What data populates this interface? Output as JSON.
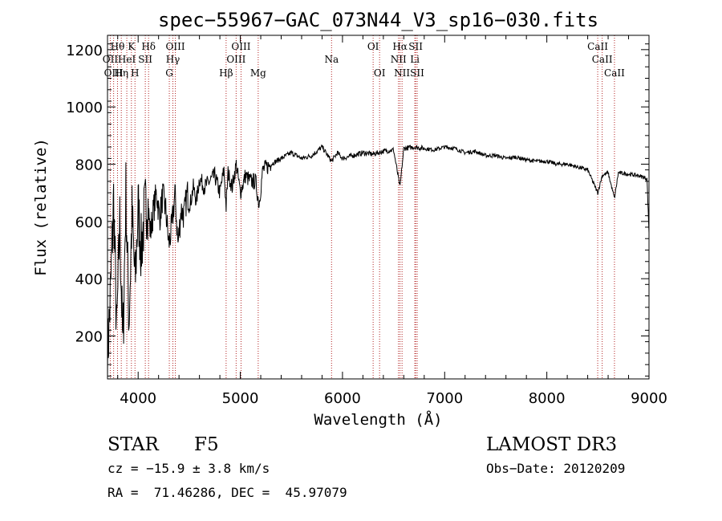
{
  "chart_data": {
    "type": "line",
    "title": "spec−55967−GAC_073N44_V3_sp16−030.fits",
    "xlabel": "Wavelength (Å)",
    "ylabel": "Flux (relative)",
    "xlim": [
      3700,
      9000
    ],
    "ylim": [
      50,
      1250
    ],
    "x_ticks": [
      4000,
      5000,
      6000,
      7000,
      8000,
      9000
    ],
    "x_tick_labels": [
      "4000",
      "5000",
      "6000",
      "7000",
      "8000",
      "9000"
    ],
    "y_ticks": [
      200,
      400,
      600,
      800,
      1000,
      1200
    ],
    "y_tick_labels": [
      "200",
      "400",
      "600",
      "800",
      "1000",
      "1200"
    ],
    "series": [
      {
        "name": "flux",
        "x": [
          3700,
          3730,
          3760,
          3790,
          3820,
          3850,
          3880,
          3910,
          3940,
          3970,
          4000,
          4030,
          4060,
          4090,
          4120,
          4150,
          4180,
          4210,
          4240,
          4270,
          4300,
          4330,
          4360,
          4390,
          4420,
          4450,
          4480,
          4510,
          4540,
          4570,
          4600,
          4650,
          4700,
          4750,
          4800,
          4840,
          4861,
          4880,
          4920,
          4960,
          5000,
          5050,
          5100,
          5150,
          5183,
          5220,
          5300,
          5400,
          5500,
          5600,
          5700,
          5800,
          5893,
          5950,
          6000,
          6100,
          6200,
          6300,
          6400,
          6500,
          6563,
          6600,
          6700,
          6800,
          6900,
          7000,
          7100,
          7200,
          7300,
          7400,
          7500,
          7600,
          7700,
          7800,
          7900,
          8000,
          8100,
          8200,
          8300,
          8400,
          8498,
          8542,
          8600,
          8662,
          8700,
          8800,
          8900,
          8980,
          9000
        ],
        "y": [
          120,
          350,
          680,
          200,
          600,
          150,
          700,
          250,
          620,
          380,
          650,
          500,
          620,
          680,
          560,
          640,
          700,
          610,
          690,
          640,
          520,
          580,
          700,
          520,
          640,
          620,
          700,
          660,
          720,
          670,
          750,
          720,
          740,
          760,
          700,
          780,
          650,
          770,
          720,
          800,
          700,
          760,
          740,
          740,
          660,
          780,
          800,
          820,
          840,
          820,
          830,
          860,
          810,
          840,
          820,
          830,
          840,
          835,
          845,
          850,
          720,
          855,
          860,
          855,
          850,
          860,
          855,
          840,
          845,
          830,
          830,
          820,
          825,
          815,
          810,
          810,
          800,
          800,
          790,
          780,
          700,
          760,
          770,
          680,
          770,
          765,
          760,
          750,
          560
        ],
        "color": "#000000"
      }
    ],
    "spectral_lines": [
      {
        "label": "Hθ",
        "wavelength": 3798,
        "row": 1
      },
      {
        "label": "K",
        "wavelength": 3934,
        "row": 1
      },
      {
        "label": "Hδ",
        "wavelength": 4102,
        "row": 1
      },
      {
        "label": "OIII",
        "wavelength": 4364,
        "row": 1
      },
      {
        "label": "OIII",
        "wavelength": 5007,
        "row": 1
      },
      {
        "label": "OI",
        "wavelength": 6300,
        "row": 1
      },
      {
        "label": "Hα",
        "wavelength": 6563,
        "row": 1
      },
      {
        "label": "SII",
        "wavelength": 6716,
        "row": 1
      },
      {
        "label": "CaII",
        "wavelength": 8498,
        "row": 1
      },
      {
        "label": "OII",
        "wavelength": 3727,
        "row": 2
      },
      {
        "label": "HeI",
        "wavelength": 3889,
        "row": 2
      },
      {
        "label": "SII",
        "wavelength": 4070,
        "row": 2
      },
      {
        "label": "Hγ",
        "wavelength": 4340,
        "row": 2
      },
      {
        "label": "OIII",
        "wavelength": 4959,
        "row": 2
      },
      {
        "label": "Na",
        "wavelength": 5893,
        "row": 2
      },
      {
        "label": "NII",
        "wavelength": 6548,
        "row": 2
      },
      {
        "label": "Li",
        "wavelength": 6708,
        "row": 2
      },
      {
        "label": "CaII",
        "wavelength": 8542,
        "row": 2
      },
      {
        "label": "OIII",
        "wavelength": 3760,
        "row": 3
      },
      {
        "label": "Hη",
        "wavelength": 3835,
        "row": 3
      },
      {
        "label": "H",
        "wavelength": 3969,
        "row": 3
      },
      {
        "label": "G",
        "wavelength": 4305,
        "row": 3
      },
      {
        "label": "Hβ",
        "wavelength": 4861,
        "row": 3
      },
      {
        "label": "Mg",
        "wavelength": 5175,
        "row": 3
      },
      {
        "label": "OI",
        "wavelength": 6363,
        "row": 3
      },
      {
        "label": "NII",
        "wavelength": 6583,
        "row": 3
      },
      {
        "label": "SII",
        "wavelength": 6731,
        "row": 3
      },
      {
        "label": "CaII",
        "wavelength": 8662,
        "row": 3
      }
    ]
  },
  "info": {
    "object_class": "STAR",
    "subclass": "F5",
    "survey": "LAMOST DR3",
    "velocity": "cz = −15.9 ± 3.8 km/s",
    "obs_date": "Obs−Date: 20120209",
    "coords": "RA =  71.46286, DEC =  45.97079"
  },
  "colors": {
    "line_marker": "#b22222",
    "spectrum": "#000000",
    "axes": "#000000"
  }
}
